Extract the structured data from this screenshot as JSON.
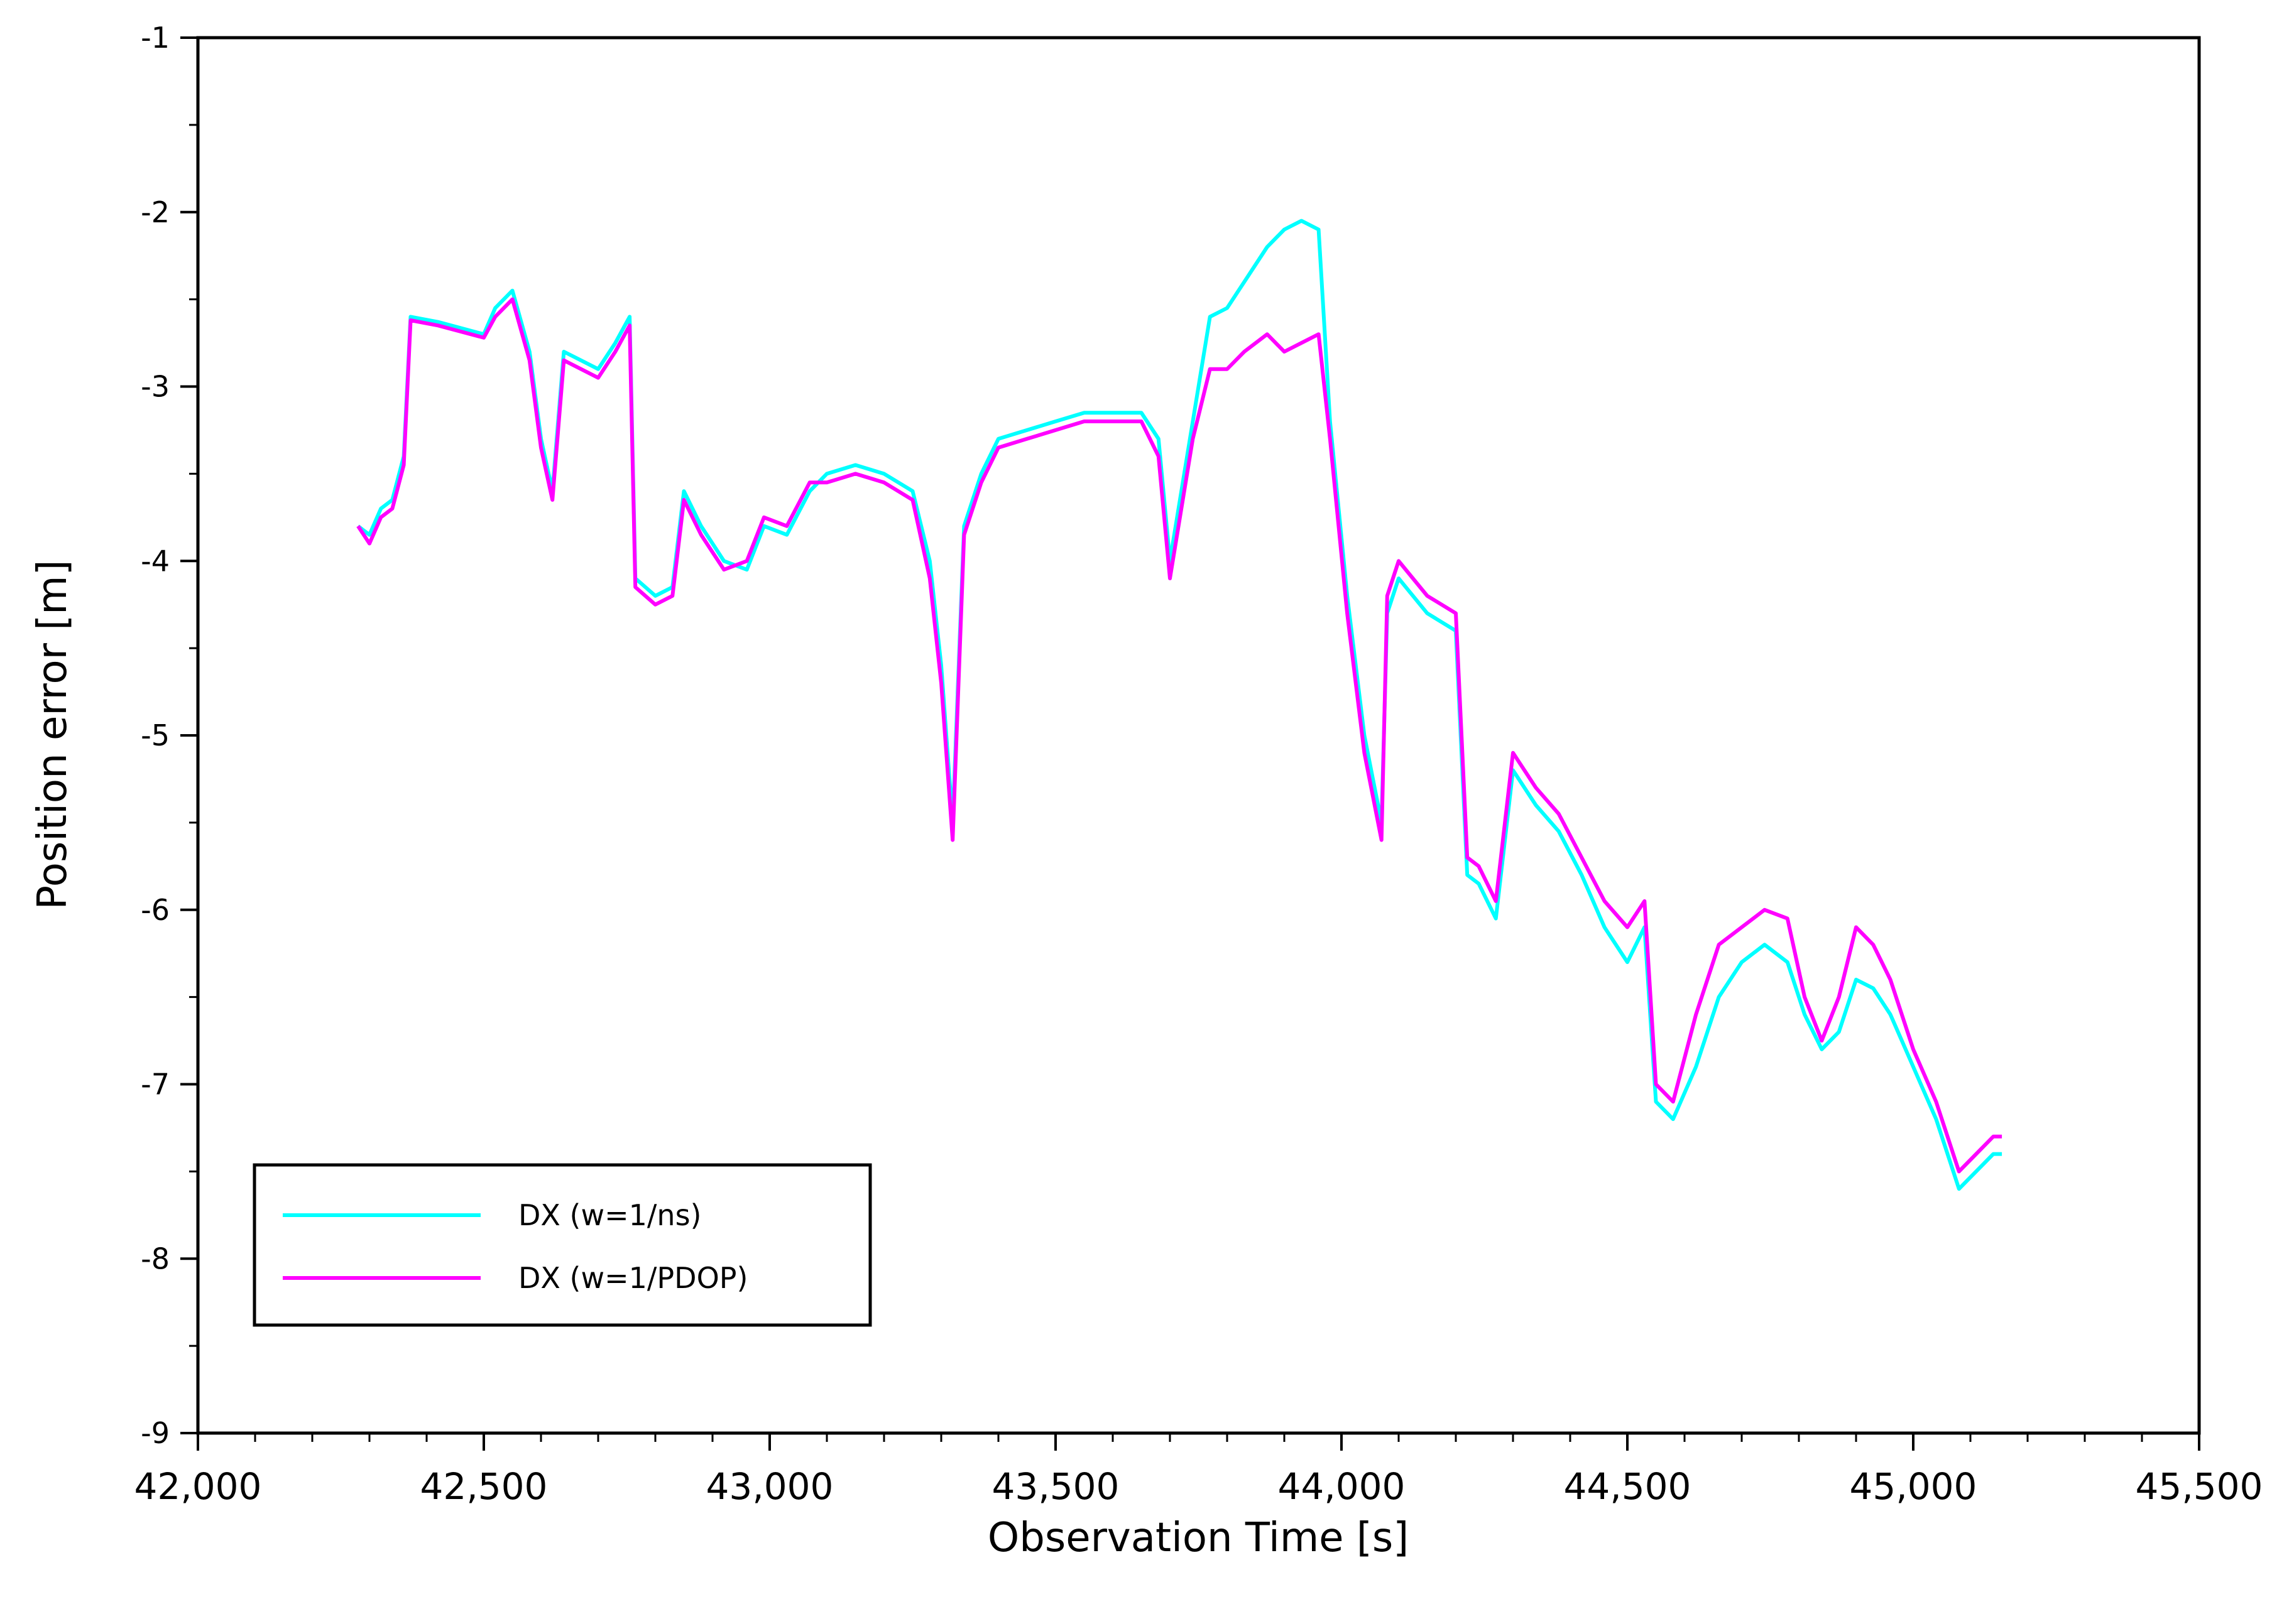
{
  "chart_data": {
    "type": "line",
    "title": "",
    "xlabel": "Observation Time [s]",
    "ylabel": "Position error [m]",
    "xlim": [
      42000,
      45500
    ],
    "ylim": [
      -9,
      -1
    ],
    "x_ticks": [
      42000,
      42500,
      43000,
      43500,
      44000,
      44500,
      45000,
      45500
    ],
    "x_tick_labels": [
      "42,000",
      "42,500",
      "43,000",
      "43,500",
      "44,000",
      "44,500",
      "45,000",
      "45,500"
    ],
    "y_ticks": [
      -9,
      -8,
      -7,
      -6,
      -5,
      -4,
      -3,
      -2,
      -1
    ],
    "y_tick_labels": [
      "-9",
      "-8",
      "-7",
      "-6",
      "-5",
      "-4",
      "-3",
      "-2",
      "-1"
    ],
    "grid": false,
    "legend_position": "bottom-left",
    "series": [
      {
        "name": "DX (w=1/ns)",
        "color": "#00ffff",
        "points": [
          [
            42280,
            -3.8
          ],
          [
            42300,
            -3.85
          ],
          [
            42320,
            -3.7
          ],
          [
            42340,
            -3.65
          ],
          [
            42360,
            -3.4
          ],
          [
            42372,
            -2.6
          ],
          [
            42420,
            -2.63
          ],
          [
            42500,
            -2.7
          ],
          [
            42520,
            -2.55
          ],
          [
            42550,
            -2.45
          ],
          [
            42580,
            -2.8
          ],
          [
            42600,
            -3.3
          ],
          [
            42620,
            -3.6
          ],
          [
            42640,
            -2.8
          ],
          [
            42670,
            -2.85
          ],
          [
            42700,
            -2.9
          ],
          [
            42730,
            -2.75
          ],
          [
            42755,
            -2.6
          ],
          [
            42765,
            -4.1
          ],
          [
            42800,
            -4.2
          ],
          [
            42830,
            -4.15
          ],
          [
            42850,
            -3.6
          ],
          [
            42880,
            -3.8
          ],
          [
            42920,
            -4.0
          ],
          [
            42960,
            -4.05
          ],
          [
            42990,
            -3.8
          ],
          [
            43030,
            -3.85
          ],
          [
            43070,
            -3.6
          ],
          [
            43100,
            -3.5
          ],
          [
            43150,
            -3.45
          ],
          [
            43200,
            -3.5
          ],
          [
            43250,
            -3.6
          ],
          [
            43280,
            -4.0
          ],
          [
            43300,
            -4.6
          ],
          [
            43320,
            -5.5
          ],
          [
            43340,
            -3.8
          ],
          [
            43370,
            -3.5
          ],
          [
            43400,
            -3.3
          ],
          [
            43450,
            -3.25
          ],
          [
            43500,
            -3.2
          ],
          [
            43550,
            -3.15
          ],
          [
            43600,
            -3.15
          ],
          [
            43650,
            -3.15
          ],
          [
            43680,
            -3.3
          ],
          [
            43700,
            -4.0
          ],
          [
            43720,
            -3.6
          ],
          [
            43740,
            -3.2
          ],
          [
            43770,
            -2.6
          ],
          [
            43800,
            -2.55
          ],
          [
            43830,
            -2.4
          ],
          [
            43870,
            -2.2
          ],
          [
            43900,
            -2.1
          ],
          [
            43930,
            -2.05
          ],
          [
            43960,
            -2.1
          ],
          [
            43980,
            -3.2
          ],
          [
            44010,
            -4.2
          ],
          [
            44040,
            -5.0
          ],
          [
            44070,
            -5.5
          ],
          [
            44080,
            -4.3
          ],
          [
            44100,
            -4.1
          ],
          [
            44150,
            -4.3
          ],
          [
            44200,
            -4.4
          ],
          [
            44220,
            -5.8
          ],
          [
            44240,
            -5.85
          ],
          [
            44270,
            -6.05
          ],
          [
            44300,
            -5.2
          ],
          [
            44340,
            -5.4
          ],
          [
            44380,
            -5.55
          ],
          [
            44420,
            -5.8
          ],
          [
            44460,
            -6.1
          ],
          [
            44500,
            -6.3
          ],
          [
            44530,
            -6.1
          ],
          [
            44550,
            -7.1
          ],
          [
            44580,
            -7.2
          ],
          [
            44620,
            -6.9
          ],
          [
            44660,
            -6.5
          ],
          [
            44700,
            -6.3
          ],
          [
            44740,
            -6.2
          ],
          [
            44780,
            -6.3
          ],
          [
            44810,
            -6.6
          ],
          [
            44840,
            -6.8
          ],
          [
            44870,
            -6.7
          ],
          [
            44900,
            -6.4
          ],
          [
            44930,
            -6.45
          ],
          [
            44960,
            -6.6
          ],
          [
            45000,
            -6.9
          ],
          [
            45040,
            -7.2
          ],
          [
            45080,
            -7.6
          ],
          [
            45110,
            -7.5
          ],
          [
            45140,
            -7.4
          ],
          [
            45155,
            -7.4
          ]
        ]
      },
      {
        "name": "DX (w=1/PDOP)",
        "color": "#ff00ff",
        "points": [
          [
            42280,
            -3.8
          ],
          [
            42300,
            -3.9
          ],
          [
            42320,
            -3.75
          ],
          [
            42340,
            -3.7
          ],
          [
            42360,
            -3.45
          ],
          [
            42372,
            -2.62
          ],
          [
            42420,
            -2.65
          ],
          [
            42500,
            -2.72
          ],
          [
            42520,
            -2.6
          ],
          [
            42550,
            -2.5
          ],
          [
            42580,
            -2.85
          ],
          [
            42600,
            -3.35
          ],
          [
            42620,
            -3.65
          ],
          [
            42640,
            -2.85
          ],
          [
            42670,
            -2.9
          ],
          [
            42700,
            -2.95
          ],
          [
            42730,
            -2.8
          ],
          [
            42755,
            -2.65
          ],
          [
            42765,
            -4.15
          ],
          [
            42800,
            -4.25
          ],
          [
            42830,
            -4.2
          ],
          [
            42850,
            -3.65
          ],
          [
            42880,
            -3.85
          ],
          [
            42920,
            -4.05
          ],
          [
            42960,
            -4.0
          ],
          [
            42990,
            -3.75
          ],
          [
            43030,
            -3.8
          ],
          [
            43070,
            -3.55
          ],
          [
            43100,
            -3.55
          ],
          [
            43150,
            -3.5
          ],
          [
            43200,
            -3.55
          ],
          [
            43250,
            -3.65
          ],
          [
            43280,
            -4.1
          ],
          [
            43300,
            -4.7
          ],
          [
            43320,
            -5.6
          ],
          [
            43340,
            -3.85
          ],
          [
            43370,
            -3.55
          ],
          [
            43400,
            -3.35
          ],
          [
            43450,
            -3.3
          ],
          [
            43500,
            -3.25
          ],
          [
            43550,
            -3.2
          ],
          [
            43600,
            -3.2
          ],
          [
            43650,
            -3.2
          ],
          [
            43680,
            -3.4
          ],
          [
            43700,
            -4.1
          ],
          [
            43720,
            -3.7
          ],
          [
            43740,
            -3.3
          ],
          [
            43770,
            -2.9
          ],
          [
            43800,
            -2.9
          ],
          [
            43830,
            -2.8
          ],
          [
            43870,
            -2.7
          ],
          [
            43900,
            -2.8
          ],
          [
            43930,
            -2.75
          ],
          [
            43960,
            -2.7
          ],
          [
            43980,
            -3.3
          ],
          [
            44010,
            -4.3
          ],
          [
            44040,
            -5.1
          ],
          [
            44070,
            -5.6
          ],
          [
            44080,
            -4.2
          ],
          [
            44100,
            -4.0
          ],
          [
            44150,
            -4.2
          ],
          [
            44200,
            -4.3
          ],
          [
            44220,
            -5.7
          ],
          [
            44240,
            -5.75
          ],
          [
            44270,
            -5.95
          ],
          [
            44300,
            -5.1
          ],
          [
            44340,
            -5.3
          ],
          [
            44380,
            -5.45
          ],
          [
            44420,
            -5.7
          ],
          [
            44460,
            -5.95
          ],
          [
            44500,
            -6.1
          ],
          [
            44530,
            -5.95
          ],
          [
            44550,
            -7.0
          ],
          [
            44580,
            -7.1
          ],
          [
            44620,
            -6.6
          ],
          [
            44660,
            -6.2
          ],
          [
            44700,
            -6.1
          ],
          [
            44740,
            -6.0
          ],
          [
            44780,
            -6.05
          ],
          [
            44810,
            -6.5
          ],
          [
            44840,
            -6.75
          ],
          [
            44870,
            -6.5
          ],
          [
            44900,
            -6.1
          ],
          [
            44930,
            -6.2
          ],
          [
            44960,
            -6.4
          ],
          [
            45000,
            -6.8
          ],
          [
            45040,
            -7.1
          ],
          [
            45080,
            -7.5
          ],
          [
            45110,
            -7.4
          ],
          [
            45140,
            -7.3
          ],
          [
            45155,
            -7.3
          ]
        ]
      }
    ]
  }
}
